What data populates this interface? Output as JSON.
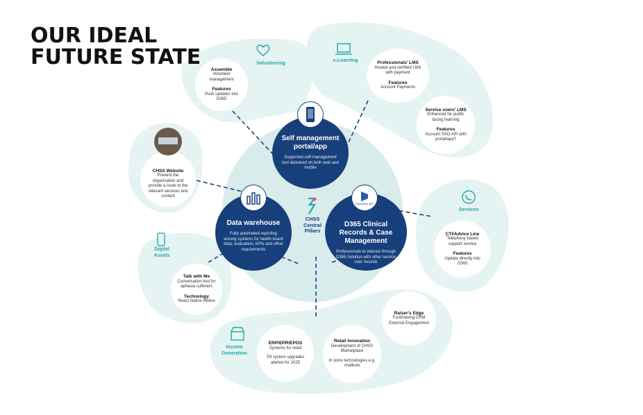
{
  "title": {
    "line1": "OUR IDEAL",
    "line2": "FUTURE STATE"
  },
  "center": {
    "line1": "CHSS",
    "line2": "Central",
    "line3": "Pillars"
  },
  "colors": {
    "navy": "#173f7b",
    "teal": "#23a9a9",
    "pale": "#e6f3f3",
    "pale2": "#d8ecec"
  },
  "pillars": {
    "self": {
      "heading": "Self management portal/app",
      "text": "Supported self-management tool delivered on both web and mobile",
      "icon": "phone-icon"
    },
    "data": {
      "heading": "Data warehouse",
      "text": "Fully automated reporting among systems for health board data, evaluation, KPIs and other requirements",
      "icon": "bar-chart-icon"
    },
    "d365": {
      "heading": "D365 Clinical Records & Case Management",
      "text": "Professionals to interact through D365 Solution with other service user records",
      "icon": "dynamics-logo-icon",
      "badge": "Dynamics 365"
    }
  },
  "segments": {
    "volunteering": "Volunteering",
    "elearning": "e-Learning",
    "services": "Services",
    "digital": "Digital Assets",
    "income": "Income Generation"
  },
  "satellites": {
    "volunteering": {
      "title": "Assemble",
      "desc": "Volunteer management",
      "sub": "Features",
      "subdesc": "Push updates into D365"
    },
    "lms_pro": {
      "title": "Professionals' LMS",
      "desc": "Hosted and certified LMS with payment",
      "sub": "Features",
      "subdesc": "Account Payments"
    },
    "lms_users": {
      "title": "Service users' LMS",
      "desc": "Enhanced for public facing learning",
      "sub": "Features",
      "subdesc": "Account SSO API with portal/app?"
    },
    "website": {
      "title": "CHSS Website",
      "desc": "Present the organisation and provide a route to the relevant services and content"
    },
    "cti": {
      "title": "CTI/Advice Line",
      "desc": "Telephony based support service",
      "sub": "Features",
      "subdesc": "Update directly into D365"
    },
    "talk": {
      "title": "Talk with Me",
      "desc": "Conversation tool for aphasia sufferers",
      "sub": "Technology",
      "subdesc": "React Native Redux"
    },
    "raisers": {
      "title": "Raiser's Edge",
      "desc": "Fundraising CRM External Engagement"
    },
    "retail": {
      "title": "Retail Innovation",
      "desc": "Development of CHSS Marketplace",
      "subdesc": "In store technologies e.g. chatbots"
    },
    "erp": {
      "title": "ERP/EPR/EPOS",
      "desc": "Systems for retail",
      "subdesc": "Till system upgrades alerted for 2025"
    }
  }
}
